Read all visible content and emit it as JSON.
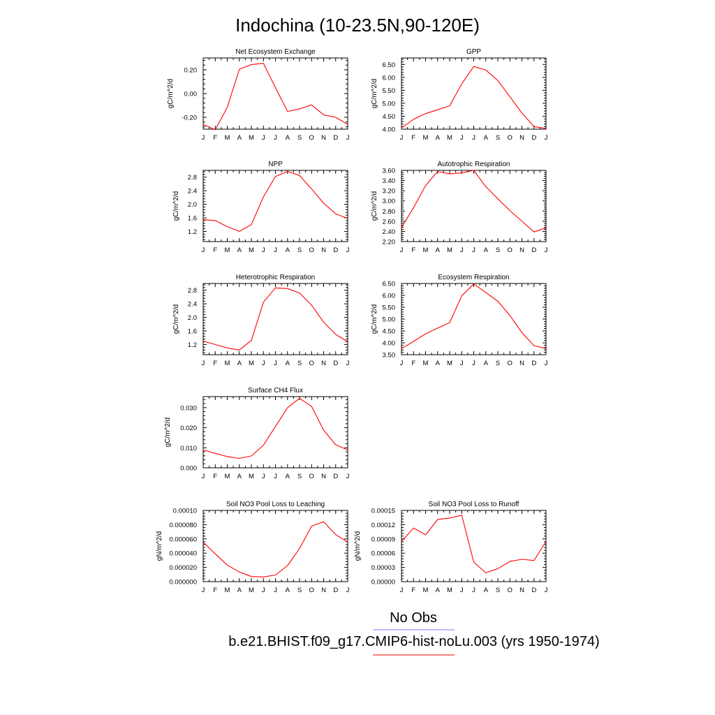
{
  "figure": {
    "title": "Indochina (10-23.5N,90-120E)"
  },
  "colors": {
    "model": "#ff0000",
    "obs": "#7b7bff"
  },
  "legend": {
    "obs_label": "No Obs",
    "model_label": "b.e21.BHIST.f09_g17.CMIP6-hist-noLu.003 (yrs 1950-1974)"
  },
  "months": [
    "J",
    "F",
    "M",
    "A",
    "M",
    "J",
    "J",
    "A",
    "S",
    "O",
    "N",
    "D",
    "J"
  ],
  "chart_data": [
    {
      "type": "line",
      "title": "Net Ecosystem Exchange",
      "ylabel": "gC/m^2/d",
      "ylim": [
        -0.3,
        0.3
      ],
      "yticks": [
        -0.2,
        0.0,
        0.2
      ],
      "ytick_labels": [
        "-0.20",
        "0.00",
        "0.20"
      ],
      "series": [
        {
          "values": [
            -0.26,
            -0.305,
            -0.115,
            0.205,
            0.245,
            0.255,
            0.05,
            -0.15,
            -0.13,
            -0.095,
            -0.18,
            -0.2,
            -0.26
          ]
        }
      ]
    },
    {
      "type": "line",
      "title": "GPP",
      "ylabel": "gC/m^2/d",
      "ylim": [
        4.0,
        6.75
      ],
      "yticks": [
        4.0,
        4.5,
        5.0,
        5.5,
        6.0,
        6.5
      ],
      "ytick_labels": [
        "4.00",
        "4.50",
        "5.00",
        "5.50",
        "6.00",
        "6.50"
      ],
      "series": [
        {
          "values": [
            4.05,
            4.38,
            4.6,
            4.75,
            4.9,
            5.75,
            6.42,
            6.28,
            5.88,
            5.25,
            4.62,
            4.1,
            4.03
          ]
        }
      ]
    },
    {
      "type": "line",
      "title": "NPP",
      "ylabel": "gC/m^2/d",
      "ylim": [
        0.9,
        3.0
      ],
      "yticks": [
        1.2,
        1.6,
        2.0,
        2.4,
        2.8
      ],
      "ytick_labels": [
        "1.2",
        "1.6",
        "2.0",
        "2.4",
        "2.8"
      ],
      "series": [
        {
          "values": [
            1.55,
            1.52,
            1.34,
            1.2,
            1.4,
            2.22,
            2.82,
            2.97,
            2.85,
            2.45,
            2.03,
            1.72,
            1.58
          ]
        }
      ]
    },
    {
      "type": "line",
      "title": "Autotrophic Respiration",
      "ylabel": "gC/m^2/d",
      "ylim": [
        2.2,
        3.6
      ],
      "yticks": [
        2.2,
        2.4,
        2.6,
        2.8,
        3.0,
        3.2,
        3.4,
        3.6
      ],
      "ytick_labels": [
        "2.20",
        "2.40",
        "2.60",
        "2.80",
        "3.00",
        "3.20",
        "3.40",
        "3.60"
      ],
      "series": [
        {
          "values": [
            2.47,
            2.87,
            3.3,
            3.58,
            3.53,
            3.55,
            3.6,
            3.28,
            3.04,
            2.81,
            2.6,
            2.39,
            2.47
          ]
        }
      ]
    },
    {
      "type": "line",
      "title": "Heterotrophic Respiration",
      "ylabel": "gC/m^2/d",
      "ylim": [
        0.9,
        3.0
      ],
      "yticks": [
        1.2,
        1.6,
        2.0,
        2.4,
        2.8
      ],
      "ytick_labels": [
        "1.2",
        "1.6",
        "2.0",
        "2.4",
        "2.8"
      ],
      "series": [
        {
          "values": [
            1.3,
            1.2,
            1.1,
            1.04,
            1.32,
            2.45,
            2.87,
            2.85,
            2.72,
            2.36,
            1.86,
            1.5,
            1.28
          ]
        }
      ]
    },
    {
      "type": "line",
      "title": "Ecosystem Respiration",
      "ylabel": "gC/m^2/d",
      "ylim": [
        3.5,
        6.5
      ],
      "yticks": [
        3.5,
        4.0,
        4.5,
        5.0,
        5.5,
        6.0,
        6.5
      ],
      "ytick_labels": [
        "3.50",
        "4.00",
        "4.50",
        "5.00",
        "5.50",
        "6.00",
        "6.50"
      ],
      "series": [
        {
          "values": [
            3.76,
            4.06,
            4.38,
            4.62,
            4.85,
            5.98,
            6.48,
            6.12,
            5.75,
            5.15,
            4.43,
            3.88,
            3.76
          ]
        }
      ]
    },
    {
      "type": "line",
      "title": "Surface CH4 Flux",
      "ylabel": "gC/m^2/d",
      "ylim": [
        0.0,
        0.0355
      ],
      "yticks": [
        0.0,
        0.01,
        0.02,
        0.03
      ],
      "ytick_labels": [
        "0.000",
        "0.010",
        "0.020",
        "0.030"
      ],
      "series": [
        {
          "values": [
            0.0089,
            0.0072,
            0.0056,
            0.0047,
            0.0059,
            0.0113,
            0.0206,
            0.03,
            0.0346,
            0.0306,
            0.0188,
            0.0115,
            0.0089
          ]
        }
      ]
    },
    {
      "type": "line",
      "title": "Soil NO3 Pool Loss to Leaching",
      "ylabel": "gN/m^2/d",
      "ylim": [
        0.0,
        0.0001
      ],
      "yticks": [
        0.0,
        2e-05,
        4e-05,
        6e-05,
        8e-05,
        0.0001
      ],
      "ytick_labels": [
        "0.000000",
        "0.000020",
        "0.000040",
        "0.000060",
        "0.000080",
        "0.00010"
      ],
      "series": [
        {
          "values": [
            5.55e-05,
            3.9e-05,
            2.32e-05,
            1.35e-05,
            7.2e-06,
            6.6e-06,
            9.3e-06,
            2.25e-05,
            4.65e-05,
            7.8e-05,
            8.4e-05,
            6.6e-05,
            5.55e-05
          ]
        }
      ]
    },
    {
      "type": "line",
      "title": "Soil NO3 Pool Loss to Runoff",
      "ylabel": "gN/m^2/d",
      "ylim": [
        0.0,
        0.00015
      ],
      "yticks": [
        0.0,
        3e-05,
        6e-05,
        9e-05,
        0.00012,
        0.00015
      ],
      "ytick_labels": [
        "0.00000",
        "0.00003",
        "0.00006",
        "0.00009",
        "0.00012",
        "0.00015"
      ],
      "series": [
        {
          "values": [
            8.45e-05,
            0.000113,
            9.85e-05,
            0.000131,
            0.000134,
            0.00014,
            4.1e-05,
            1.85e-05,
            2.75e-05,
            4.25e-05,
            4.7e-05,
            4.45e-05,
            8.45e-05
          ]
        }
      ]
    }
  ]
}
